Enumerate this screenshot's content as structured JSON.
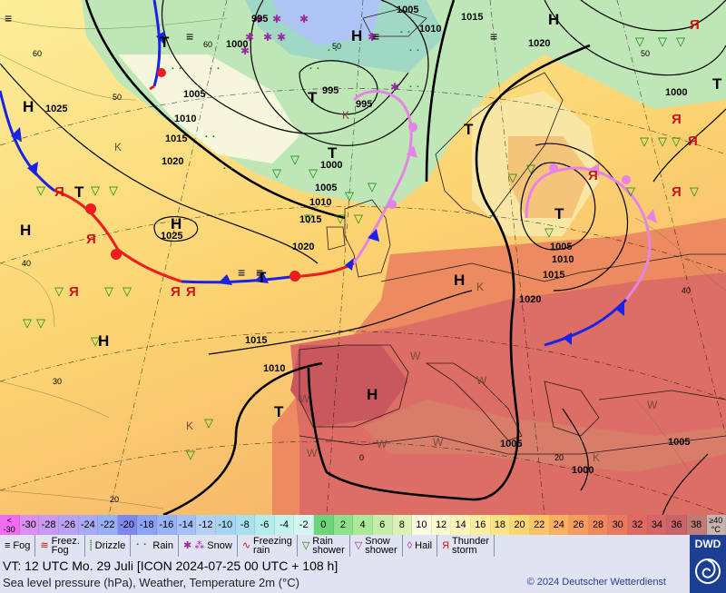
{
  "map": {
    "pressure_labels": [
      "995",
      "1000",
      "1005",
      "1010",
      "1015",
      "1020",
      "1025",
      "995",
      "1000",
      "1005",
      "1010",
      "1015",
      "1020",
      "1025",
      "1005",
      "1010",
      "1015",
      "1020",
      "1000",
      "1005",
      "1010",
      "1015",
      "1020",
      "1015",
      "1010",
      "1005"
    ],
    "centers": {
      "high": "H",
      "low": "T"
    },
    "isotherm_labels": [
      "60",
      "60",
      "50",
      "40",
      "30",
      "20",
      "0",
      "20",
      "40",
      "50",
      "50"
    ],
    "warm_mark": "W",
    "cold_mark": "K",
    "colors": {
      "cold_front": "#1a22e6",
      "warm_front": "#ee1c1c",
      "occluded_front": "#e683e6",
      "isobar": "#000000"
    }
  },
  "scale": {
    "items": [
      {
        "label": "<\n-30",
        "color": "#f06cf0"
      },
      {
        "label": "-30",
        "color": "#d890f2"
      },
      {
        "label": "-28",
        "color": "#c89af2"
      },
      {
        "label": "-26",
        "color": "#b8a2f4"
      },
      {
        "label": "-24",
        "color": "#a8aaf6"
      },
      {
        "label": "-22",
        "color": "#96b0f6"
      },
      {
        "label": "-20",
        "color": "#7f88ee"
      },
      {
        "label": "-18",
        "color": "#8ca2f6"
      },
      {
        "label": "-16",
        "color": "#98b2f6"
      },
      {
        "label": "-14",
        "color": "#a4c0f6"
      },
      {
        "label": "-12",
        "color": "#b4cef4"
      },
      {
        "label": "-10",
        "color": "#a4d6f4"
      },
      {
        "label": "-8",
        "color": "#a8e0f0"
      },
      {
        "label": "-6",
        "color": "#b4ecee"
      },
      {
        "label": "-4",
        "color": "#c4f2ee"
      },
      {
        "label": "-2",
        "color": "#d4f6f0"
      },
      {
        "label": "0",
        "color": "#6ed47a"
      },
      {
        "label": "2",
        "color": "#8ee08a"
      },
      {
        "label": "4",
        "color": "#aae89c"
      },
      {
        "label": "6",
        "color": "#c4ee aa"
      },
      {
        "label": "8",
        "color": "#dcf2b4"
      },
      {
        "label": "10",
        "color": "#fafae0"
      },
      {
        "label": "12",
        "color": "#fafad0"
      },
      {
        "label": "14",
        "color": "#fcf4b8"
      },
      {
        "label": "16",
        "color": "#fcee9e"
      },
      {
        "label": "18",
        "color": "#fce486"
      },
      {
        "label": "20",
        "color": "#fcd672"
      },
      {
        "label": "22",
        "color": "#fcc466"
      },
      {
        "label": "24",
        "color": "#fab060"
      },
      {
        "label": "26",
        "color": "#f69c5c"
      },
      {
        "label": "28",
        "color": "#f08a5c"
      },
      {
        "label": "30",
        "color": "#e87a5e"
      },
      {
        "label": "32",
        "color": "#e06a62"
      },
      {
        "label": "34",
        "color": "#d46668"
      },
      {
        "label": "36",
        "color": "#c8646a"
      },
      {
        "label": "38",
        "color": "#c07c74"
      },
      {
        "label": "≥40\n°C",
        "color": "#c8b4ae"
      }
    ]
  },
  "legend": {
    "items": [
      {
        "icon": "≡",
        "label": "Fog",
        "icon_name": "fog-icon",
        "color": "#000000"
      },
      {
        "icon": "≋",
        "label": "Freez.\nFog",
        "icon_name": "freezing-fog-icon",
        "color": "#c81414"
      },
      {
        "icon": "⸽",
        "label": "Drizzle",
        "icon_name": "drizzle-icon",
        "color": "#0a8a0a"
      },
      {
        "icon": "⠂⠂",
        "label": "Rain",
        "icon_name": "rain-icon",
        "color": "#0a8a0a"
      },
      {
        "icon": "✱ ⁂",
        "label": "Snow",
        "icon_name": "snow-icon",
        "color": "#9a2aa0"
      },
      {
        "icon": "∿",
        "label": "Freezing\nrain",
        "icon_name": "freezing-rain-icon",
        "color": "#c81414"
      },
      {
        "icon": "▽",
        "label": "Rain\nshower",
        "icon_name": "rain-shower-icon",
        "color": "#0a8a0a"
      },
      {
        "icon": "▽",
        "label": "Snow\nshower",
        "icon_name": "snow-shower-icon",
        "color": "#9a2aa0"
      },
      {
        "icon": "◊",
        "label": "Hail",
        "icon_name": "hail-icon",
        "color": "#9a2aa0"
      },
      {
        "icon": "Я",
        "label": "Thunder\nstorm",
        "icon_name": "thunderstorm-icon",
        "color": "#c81414"
      }
    ]
  },
  "footer": {
    "valid_time": "VT: 12 UTC Mo.   29 Juli [ICON 2024-07-25  00 UTC + 108 h]",
    "subtitle": "Sea level pressure (hPa), Weather, Temperature 2m (°C)",
    "copyright": "© 2024 Deutscher Wetterdienst",
    "logo": "DWD"
  }
}
